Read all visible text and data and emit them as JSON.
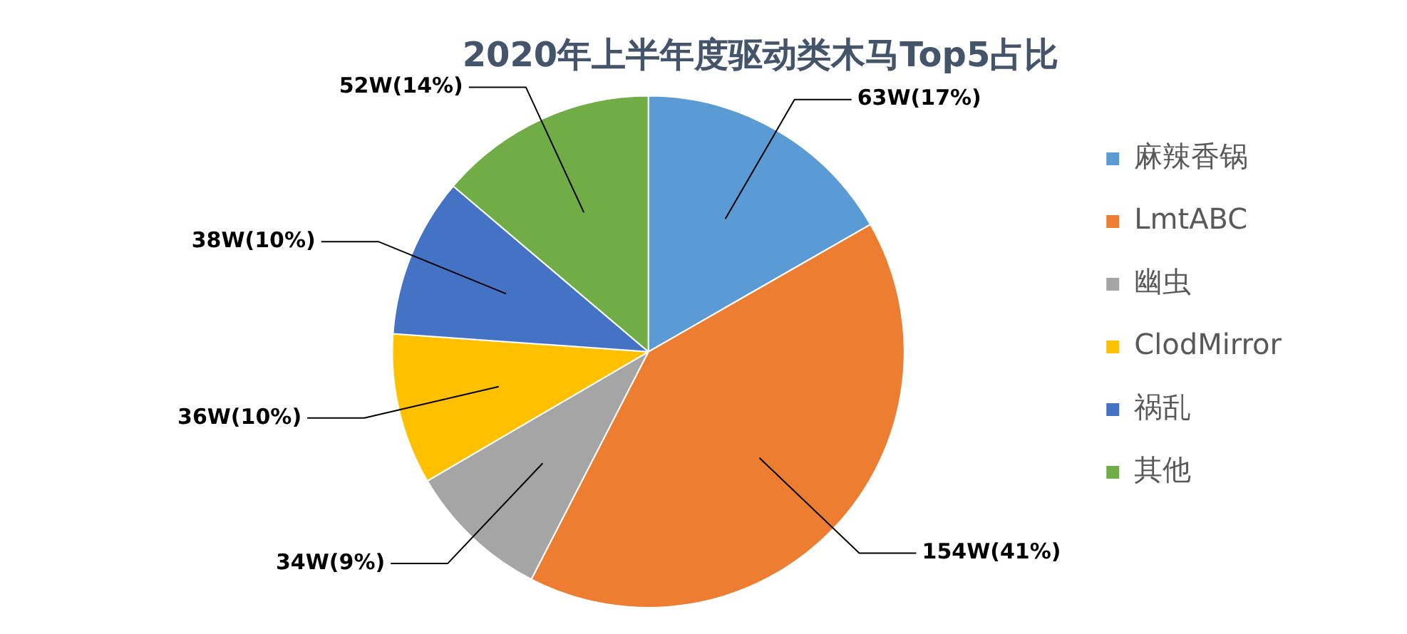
{
  "chart_data": {
    "type": "pie",
    "title": "2020年上半年度驱动类木马Top5占比",
    "categories": [
      "麻辣香锅",
      "LmtABC",
      "幽虫",
      "ClodMirror",
      "祸乱",
      "其他"
    ],
    "values": [
      63,
      154,
      34,
      36,
      38,
      52
    ],
    "value_labels": [
      "63W(17%)",
      "154W(41%)",
      "34W(9%)",
      "36W(10%)",
      "38W(10%)",
      "52W(14%)"
    ],
    "colors": [
      "#5b9bd5",
      "#ed7d31",
      "#a5a5a5",
      "#ffc000",
      "#4472c4",
      "#70ad47"
    ],
    "legend": "right"
  }
}
